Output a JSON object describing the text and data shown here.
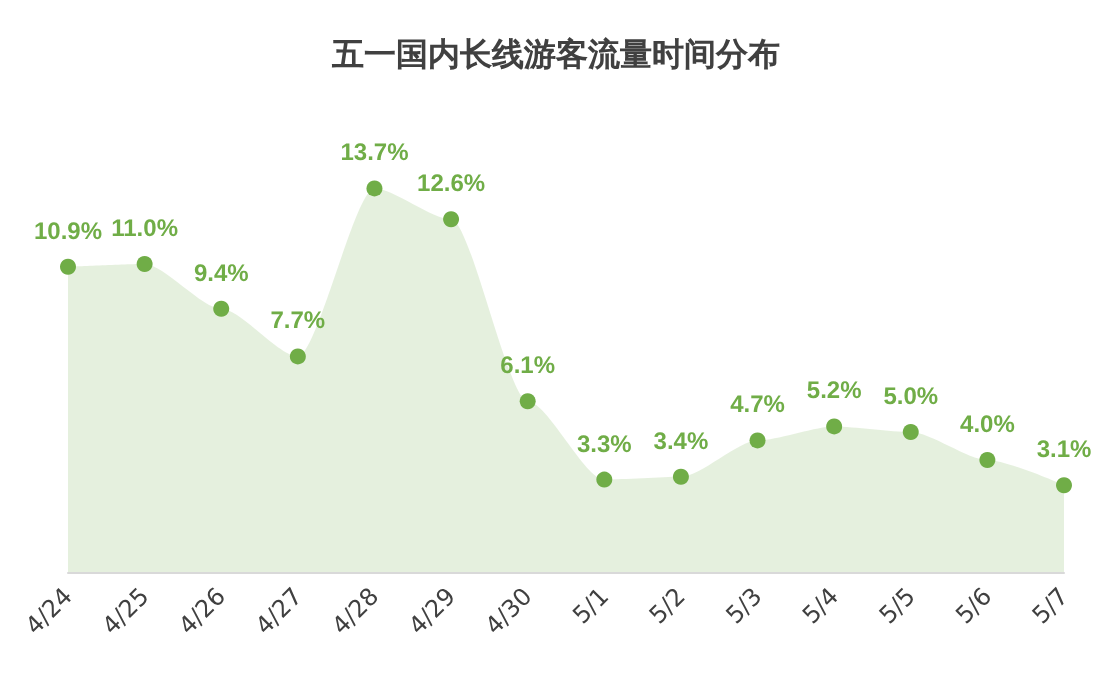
{
  "chart_data": {
    "type": "area",
    "title": "五一国内长线游客流量时间分布",
    "categories": [
      "4/24",
      "4/25",
      "4/26",
      "4/27",
      "4/28",
      "4/29",
      "4/30",
      "5/1",
      "5/2",
      "5/3",
      "5/4",
      "5/5",
      "5/6",
      "5/7"
    ],
    "series": [
      {
        "color": "#70ad47",
        "values": [
          10.9,
          11.0,
          9.4,
          7.7,
          13.7,
          12.6,
          6.1,
          3.3,
          3.4,
          4.7,
          5.2,
          5.0,
          4.0,
          3.1
        ],
        "value_labels": [
          "10.9%",
          "11.0%",
          "9.4%",
          "7.7%",
          "13.7%",
          "12.6%",
          "6.1%",
          "3.3%",
          "3.4%",
          "4.7%",
          "5.2%",
          "5.0%",
          "4.0%",
          "3.1%"
        ]
      }
    ],
    "marker": "circle"
  }
}
